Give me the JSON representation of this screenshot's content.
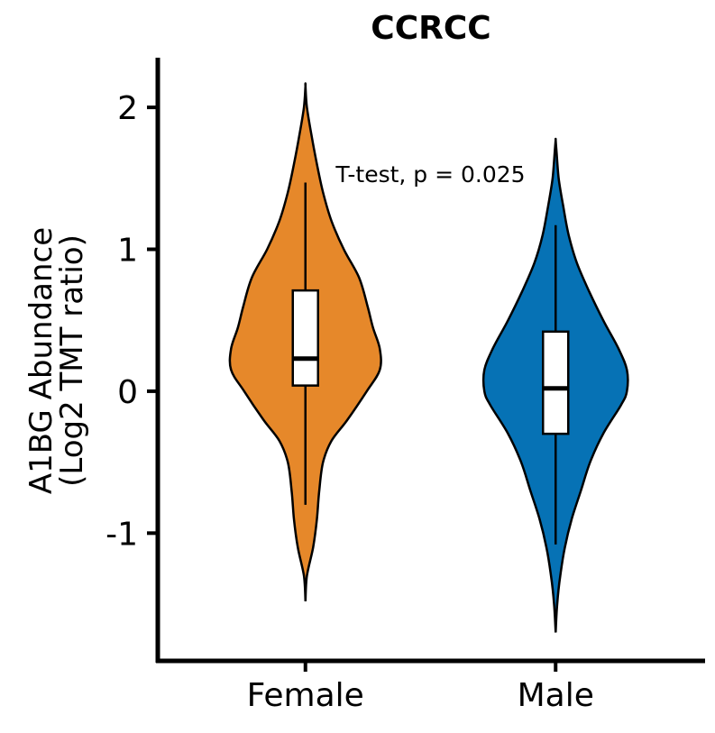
{
  "chart_data": {
    "type": "violin",
    "title": "CCRCC",
    "ylabel": [
      "A1BG Abundance",
      "(Log2 TMT ratio)"
    ],
    "xlabel": "",
    "ylim": [
      -1.9,
      2.35
    ],
    "yticks": [
      2,
      1,
      0,
      -1
    ],
    "ytick_labels": [
      "2",
      "1",
      "0",
      "-1"
    ],
    "categories": [
      "Female",
      "Male"
    ],
    "groups": [
      {
        "category": "Female",
        "color": "#E6882A",
        "min": -1.48,
        "max": 2.15,
        "q1": 0.04,
        "median": 0.23,
        "q3": 0.71,
        "whisker_low": -0.8,
        "whisker_high": 1.47,
        "density": [
          [
            -1.48,
            0.0
          ],
          [
            -1.3,
            0.02
          ],
          [
            -1.1,
            0.1
          ],
          [
            -0.9,
            0.15
          ],
          [
            -0.7,
            0.18
          ],
          [
            -0.5,
            0.23
          ],
          [
            -0.35,
            0.34
          ],
          [
            -0.2,
            0.55
          ],
          [
            0.0,
            0.8
          ],
          [
            0.15,
            0.97
          ],
          [
            0.3,
            0.97
          ],
          [
            0.45,
            0.88
          ],
          [
            0.6,
            0.81
          ],
          [
            0.8,
            0.7
          ],
          [
            1.0,
            0.5
          ],
          [
            1.2,
            0.34
          ],
          [
            1.4,
            0.23
          ],
          [
            1.6,
            0.15
          ],
          [
            1.8,
            0.08
          ],
          [
            2.0,
            0.02
          ],
          [
            2.15,
            0.0
          ]
        ]
      },
      {
        "category": "Male",
        "color": "#0672B5",
        "min": -1.7,
        "max": 1.77,
        "q1": -0.3,
        "median": 0.02,
        "q3": 0.42,
        "whisker_low": -1.08,
        "whisker_high": 1.17,
        "density": [
          [
            -1.7,
            0.0
          ],
          [
            -1.5,
            0.02
          ],
          [
            -1.3,
            0.06
          ],
          [
            -1.1,
            0.12
          ],
          [
            -0.9,
            0.21
          ],
          [
            -0.7,
            0.33
          ],
          [
            -0.5,
            0.45
          ],
          [
            -0.3,
            0.62
          ],
          [
            -0.1,
            0.85
          ],
          [
            0.0,
            0.93
          ],
          [
            0.15,
            0.93
          ],
          [
            0.3,
            0.82
          ],
          [
            0.5,
            0.62
          ],
          [
            0.7,
            0.44
          ],
          [
            0.9,
            0.28
          ],
          [
            1.1,
            0.17
          ],
          [
            1.3,
            0.1
          ],
          [
            1.5,
            0.04
          ],
          [
            1.7,
            0.01
          ],
          [
            1.77,
            0.0
          ]
        ]
      }
    ],
    "annotations": [
      "T-test, p = 0.025"
    ],
    "grid": false,
    "legend": "none"
  }
}
